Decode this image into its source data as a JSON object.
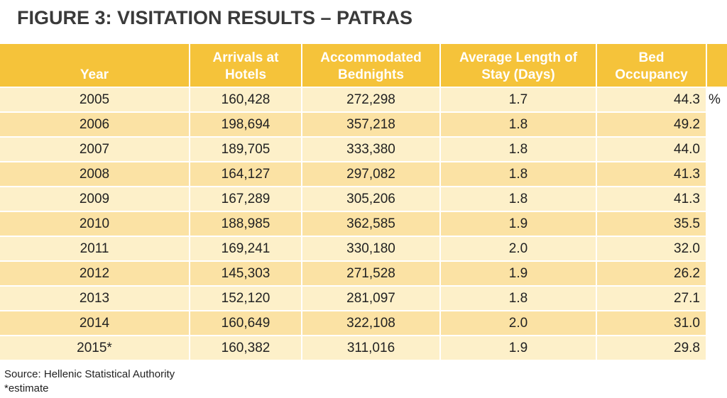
{
  "title": "FIGURE 3: VISITATION RESULTS – PATRAS",
  "chart_data": {
    "type": "table",
    "title": "FIGURE 3: VISITATION RESULTS – PATRAS",
    "columns": [
      {
        "key": "year",
        "label_lines": [
          "Year"
        ]
      },
      {
        "key": "arrivals",
        "label_lines": [
          "Arrivals at",
          "Hotels"
        ]
      },
      {
        "key": "bednights",
        "label_lines": [
          "Accommodated",
          "Bednights"
        ]
      },
      {
        "key": "avg_stay",
        "label_lines": [
          "Average Length of",
          "Stay (Days)"
        ]
      },
      {
        "key": "occupancy",
        "label_lines": [
          "Bed",
          "Occupancy"
        ]
      }
    ],
    "occupancy_unit": "%",
    "rows": [
      {
        "year": "2005",
        "arrivals": "160,428",
        "bednights": "272,298",
        "avg_stay": "1.7",
        "occupancy": "44.3"
      },
      {
        "year": "2006",
        "arrivals": "198,694",
        "bednights": "357,218",
        "avg_stay": "1.8",
        "occupancy": "49.2"
      },
      {
        "year": "2007",
        "arrivals": "189,705",
        "bednights": "333,380",
        "avg_stay": "1.8",
        "occupancy": "44.0"
      },
      {
        "year": "2008",
        "arrivals": "164,127",
        "bednights": "297,082",
        "avg_stay": "1.8",
        "occupancy": "41.3"
      },
      {
        "year": "2009",
        "arrivals": "167,289",
        "bednights": "305,206",
        "avg_stay": "1.8",
        "occupancy": "41.3"
      },
      {
        "year": "2010",
        "arrivals": "188,985",
        "bednights": "362,585",
        "avg_stay": "1.9",
        "occupancy": "35.5"
      },
      {
        "year": "2011",
        "arrivals": "169,241",
        "bednights": "330,180",
        "avg_stay": "2.0",
        "occupancy": "32.0"
      },
      {
        "year": "2012",
        "arrivals": "145,303",
        "bednights": "271,528",
        "avg_stay": "1.9",
        "occupancy": "26.2"
      },
      {
        "year": "2013",
        "arrivals": "152,120",
        "bednights": "281,097",
        "avg_stay": "1.8",
        "occupancy": "27.1"
      },
      {
        "year": "2014",
        "arrivals": "160,649",
        "bednights": "322,108",
        "avg_stay": "2.0",
        "occupancy": "31.0"
      },
      {
        "year": "2015*",
        "arrivals": "160,382",
        "bednights": "311,016",
        "avg_stay": "1.9",
        "occupancy": "29.8"
      }
    ]
  },
  "footer": {
    "source": "Source: Hellenic Statistical Authority",
    "note": "*estimate"
  },
  "colors": {
    "header_bg": "#f5c33a",
    "row_light": "#fdf0c9",
    "row_dark": "#fbe2a4",
    "title_text": "#3a3a3a"
  }
}
